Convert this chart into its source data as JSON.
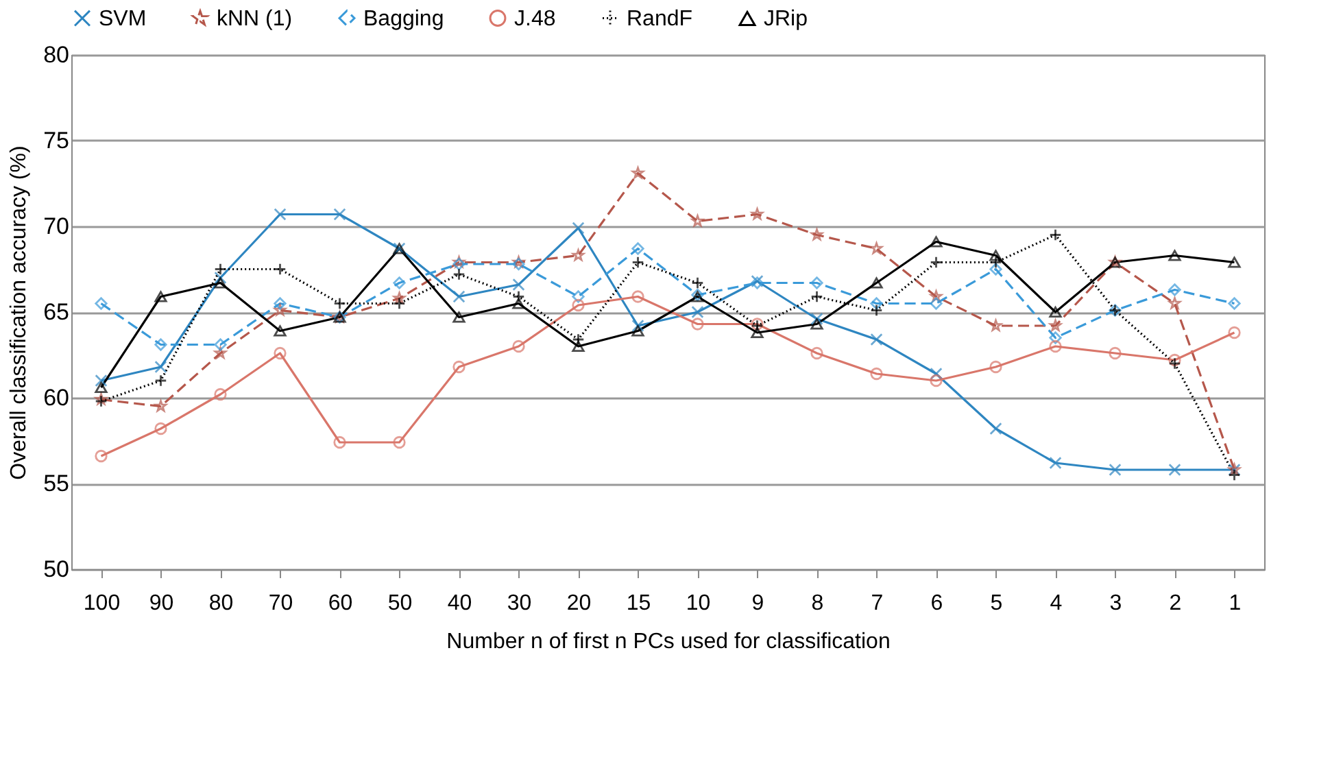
{
  "chart_data": {
    "type": "line",
    "xlabel": "Number n of first n PCs used for classification",
    "ylabel": "Overall classification accuracy (%)",
    "categories": [
      "100",
      "90",
      "80",
      "70",
      "60",
      "50",
      "40",
      "30",
      "20",
      "15",
      "10",
      "9",
      "8",
      "7",
      "6",
      "5",
      "4",
      "3",
      "2",
      "1"
    ],
    "ylim": [
      50,
      80
    ],
    "yticks": [
      50,
      55,
      60,
      65,
      70,
      75,
      80
    ],
    "grid": "y",
    "legend": "top",
    "series": [
      {
        "name": "SVM",
        "color": "#2e86c1",
        "marker": "x",
        "line_style": "solid",
        "values": [
          61.0,
          61.8,
          67.0,
          70.7,
          70.7,
          68.7,
          65.9,
          66.6,
          69.9,
          64.2,
          65.0,
          66.8,
          64.6,
          63.4,
          61.4,
          58.2,
          56.2,
          55.8,
          55.8,
          55.8
        ]
      },
      {
        "name": "kNN (1)",
        "color": "#b5574b",
        "marker": "star",
        "line_style": "dashed",
        "values": [
          59.9,
          59.5,
          62.6,
          65.1,
          64.7,
          65.8,
          67.9,
          67.9,
          68.3,
          73.1,
          70.3,
          70.7,
          69.5,
          68.7,
          65.9,
          64.2,
          64.2,
          67.9,
          65.5,
          55.8
        ]
      },
      {
        "name": "Bagging",
        "color": "#3a9ad9",
        "marker": "diamond",
        "line_style": "dashed",
        "values": [
          65.5,
          63.1,
          63.1,
          65.5,
          64.7,
          66.7,
          67.8,
          67.8,
          65.9,
          68.7,
          66.0,
          66.7,
          66.7,
          65.5,
          65.5,
          67.5,
          63.5,
          65.1,
          66.3,
          65.5
        ]
      },
      {
        "name": "J.48",
        "color": "#d9766a",
        "marker": "circle",
        "line_style": "solid",
        "values": [
          56.6,
          58.2,
          60.2,
          62.6,
          57.4,
          57.4,
          61.8,
          63.0,
          65.4,
          65.9,
          64.3,
          64.3,
          62.6,
          61.4,
          61.0,
          61.8,
          63.0,
          62.6,
          62.2,
          63.8
        ]
      },
      {
        "name": "RandF",
        "color": "#000000",
        "marker": "cross",
        "line_style": "dotted",
        "values": [
          59.8,
          61.0,
          67.5,
          67.5,
          65.5,
          65.5,
          67.2,
          65.9,
          63.4,
          67.9,
          66.7,
          64.2,
          65.9,
          65.1,
          67.9,
          67.9,
          69.5,
          65.1,
          62.0,
          55.5
        ]
      },
      {
        "name": "JRip",
        "color": "#000000",
        "marker": "triangle",
        "line_style": "solid",
        "values": [
          60.6,
          65.9,
          66.7,
          63.9,
          64.7,
          68.7,
          64.7,
          65.5,
          63.0,
          63.9,
          65.9,
          63.8,
          64.3,
          66.7,
          69.1,
          68.3,
          65.0,
          67.9,
          68.3,
          67.9
        ]
      }
    ]
  }
}
